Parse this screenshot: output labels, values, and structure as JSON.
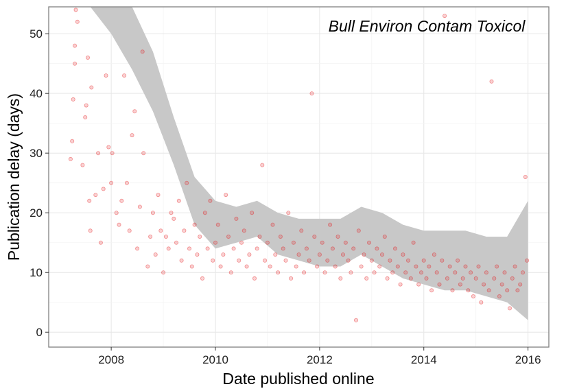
{
  "chart_data": {
    "type": "scatter",
    "title": "",
    "annotation": "Bull Environ Contam Toxicol",
    "xlabel": "Date published online",
    "ylabel": "Publication delay (days)",
    "xlim": [
      2006.8,
      2016.4
    ],
    "ylim": [
      -2.5,
      54.5
    ],
    "x_ticks": [
      2008,
      2010,
      2012,
      2014,
      2016
    ],
    "y_ticks": [
      0,
      10,
      20,
      30,
      40,
      50
    ],
    "x_tick_labels": [
      "2008",
      "2010",
      "2012",
      "2014",
      "2016"
    ],
    "y_tick_labels": [
      "0",
      "10",
      "20",
      "30",
      "40",
      "50"
    ],
    "grid": true,
    "point_color": "#e41a1c",
    "band_color": "#c8c8c8",
    "points": [
      [
        2007.22,
        29
      ],
      [
        2007.25,
        32
      ],
      [
        2007.27,
        39
      ],
      [
        2007.3,
        45
      ],
      [
        2007.3,
        48
      ],
      [
        2007.32,
        54
      ],
      [
        2007.35,
        52
      ],
      [
        2007.45,
        28
      ],
      [
        2007.5,
        36
      ],
      [
        2007.52,
        38
      ],
      [
        2007.55,
        46
      ],
      [
        2007.58,
        22
      ],
      [
        2007.6,
        17
      ],
      [
        2007.62,
        41
      ],
      [
        2007.7,
        23
      ],
      [
        2007.75,
        30
      ],
      [
        2007.8,
        15
      ],
      [
        2007.85,
        24
      ],
      [
        2007.9,
        43
      ],
      [
        2007.95,
        31
      ],
      [
        2008.0,
        25
      ],
      [
        2008.02,
        30
      ],
      [
        2008.1,
        20
      ],
      [
        2008.15,
        18
      ],
      [
        2008.2,
        22
      ],
      [
        2008.25,
        43
      ],
      [
        2008.3,
        25
      ],
      [
        2008.35,
        17
      ],
      [
        2008.4,
        33
      ],
      [
        2008.45,
        37
      ],
      [
        2008.5,
        14
      ],
      [
        2008.55,
        21
      ],
      [
        2008.6,
        47
      ],
      [
        2008.62,
        30
      ],
      [
        2008.7,
        11
      ],
      [
        2008.75,
        16
      ],
      [
        2008.8,
        20
      ],
      [
        2008.85,
        13
      ],
      [
        2008.9,
        23
      ],
      [
        2008.95,
        17
      ],
      [
        2009.0,
        10
      ],
      [
        2009.05,
        16
      ],
      [
        2009.1,
        14
      ],
      [
        2009.15,
        20
      ],
      [
        2009.2,
        19
      ],
      [
        2009.25,
        15
      ],
      [
        2009.3,
        22
      ],
      [
        2009.35,
        12
      ],
      [
        2009.4,
        17
      ],
      [
        2009.45,
        25
      ],
      [
        2009.5,
        14
      ],
      [
        2009.55,
        11
      ],
      [
        2009.6,
        18
      ],
      [
        2009.65,
        13
      ],
      [
        2009.7,
        16
      ],
      [
        2009.75,
        9
      ],
      [
        2009.8,
        20
      ],
      [
        2009.85,
        14
      ],
      [
        2009.9,
        22
      ],
      [
        2009.95,
        12
      ],
      [
        2010.0,
        15
      ],
      [
        2010.05,
        18
      ],
      [
        2010.1,
        11
      ],
      [
        2010.15,
        13
      ],
      [
        2010.2,
        23
      ],
      [
        2010.25,
        16
      ],
      [
        2010.3,
        10
      ],
      [
        2010.35,
        14
      ],
      [
        2010.4,
        19
      ],
      [
        2010.45,
        12
      ],
      [
        2010.5,
        15
      ],
      [
        2010.55,
        17
      ],
      [
        2010.6,
        11
      ],
      [
        2010.65,
        13
      ],
      [
        2010.7,
        20
      ],
      [
        2010.75,
        9
      ],
      [
        2010.8,
        14
      ],
      [
        2010.85,
        16
      ],
      [
        2010.9,
        28
      ],
      [
        2010.95,
        12
      ],
      [
        2011.0,
        15
      ],
      [
        2011.05,
        11
      ],
      [
        2011.1,
        18
      ],
      [
        2011.15,
        13
      ],
      [
        2011.2,
        10
      ],
      [
        2011.25,
        16
      ],
      [
        2011.3,
        14
      ],
      [
        2011.35,
        12
      ],
      [
        2011.4,
        20
      ],
      [
        2011.45,
        9
      ],
      [
        2011.5,
        15
      ],
      [
        2011.55,
        11
      ],
      [
        2011.6,
        13
      ],
      [
        2011.65,
        17
      ],
      [
        2011.7,
        10
      ],
      [
        2011.75,
        14
      ],
      [
        2011.8,
        12
      ],
      [
        2011.85,
        40
      ],
      [
        2011.9,
        16
      ],
      [
        2011.95,
        11
      ],
      [
        2012.0,
        13
      ],
      [
        2012.05,
        15
      ],
      [
        2012.1,
        10
      ],
      [
        2012.15,
        12
      ],
      [
        2012.2,
        18
      ],
      [
        2012.25,
        14
      ],
      [
        2012.3,
        11
      ],
      [
        2012.35,
        16
      ],
      [
        2012.4,
        9
      ],
      [
        2012.45,
        13
      ],
      [
        2012.5,
        15
      ],
      [
        2012.55,
        12
      ],
      [
        2012.6,
        10
      ],
      [
        2012.65,
        14
      ],
      [
        2012.7,
        2
      ],
      [
        2012.75,
        17
      ],
      [
        2012.8,
        11
      ],
      [
        2012.85,
        13
      ],
      [
        2012.9,
        9
      ],
      [
        2012.95,
        15
      ],
      [
        2013.0,
        12
      ],
      [
        2013.05,
        10
      ],
      [
        2013.1,
        14
      ],
      [
        2013.15,
        11
      ],
      [
        2013.2,
        13
      ],
      [
        2013.25,
        16
      ],
      [
        2013.3,
        9
      ],
      [
        2013.35,
        12
      ],
      [
        2013.4,
        10
      ],
      [
        2013.45,
        14
      ],
      [
        2013.5,
        11
      ],
      [
        2013.55,
        8
      ],
      [
        2013.6,
        13
      ],
      [
        2013.65,
        10
      ],
      [
        2013.7,
        12
      ],
      [
        2013.75,
        9
      ],
      [
        2013.8,
        15
      ],
      [
        2013.85,
        11
      ],
      [
        2013.9,
        8
      ],
      [
        2013.95,
        10
      ],
      [
        2014.0,
        12
      ],
      [
        2014.05,
        9
      ],
      [
        2014.1,
        11
      ],
      [
        2014.15,
        7
      ],
      [
        2014.2,
        13
      ],
      [
        2014.25,
        10
      ],
      [
        2014.3,
        8
      ],
      [
        2014.35,
        12
      ],
      [
        2014.4,
        53
      ],
      [
        2014.45,
        9
      ],
      [
        2014.5,
        11
      ],
      [
        2014.55,
        7
      ],
      [
        2014.6,
        10
      ],
      [
        2014.65,
        12
      ],
      [
        2014.7,
        8
      ],
      [
        2014.75,
        9
      ],
      [
        2014.8,
        11
      ],
      [
        2014.85,
        7
      ],
      [
        2014.9,
        10
      ],
      [
        2014.95,
        6
      ],
      [
        2015.0,
        9
      ],
      [
        2015.05,
        11
      ],
      [
        2015.1,
        5
      ],
      [
        2015.15,
        8
      ],
      [
        2015.2,
        10
      ],
      [
        2015.25,
        7
      ],
      [
        2015.3,
        42
      ],
      [
        2015.35,
        9
      ],
      [
        2015.4,
        11
      ],
      [
        2015.45,
        6
      ],
      [
        2015.5,
        8
      ],
      [
        2015.55,
        10
      ],
      [
        2015.6,
        7
      ],
      [
        2015.65,
        4
      ],
      [
        2015.7,
        9
      ],
      [
        2015.75,
        11
      ],
      [
        2015.8,
        7
      ],
      [
        2015.85,
        8
      ],
      [
        2015.9,
        10
      ],
      [
        2015.95,
        26
      ],
      [
        2015.98,
        12
      ]
    ],
    "smooth_band": {
      "x": [
        2007.3,
        2007.6,
        2008.0,
        2008.4,
        2008.8,
        2009.2,
        2009.6,
        2010.0,
        2010.4,
        2010.8,
        2011.2,
        2011.6,
        2012.0,
        2012.4,
        2012.8,
        2013.2,
        2013.6,
        2014.0,
        2014.4,
        2014.8,
        2015.2,
        2015.6,
        2016.0
      ],
      "upper": [
        54.5,
        54.5,
        54.5,
        54.5,
        47,
        36,
        26,
        22,
        21,
        22,
        20,
        19,
        19,
        19,
        21,
        20,
        18,
        17,
        17,
        17,
        16,
        16,
        22
      ],
      "lower": [
        54.5,
        54.5,
        50,
        44,
        37,
        28,
        18,
        14,
        15,
        16,
        13,
        12,
        11,
        11,
        13,
        11,
        9,
        8,
        7,
        7,
        6,
        5,
        2
      ]
    }
  }
}
